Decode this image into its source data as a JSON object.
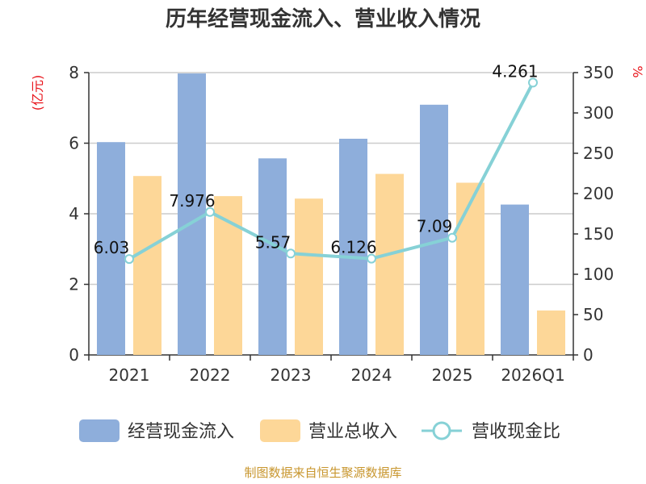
{
  "chart_data": {
    "type": "bar",
    "title": "历年经营现金流入、营业收入情况",
    "categories": [
      "2021",
      "2022",
      "2023",
      "2024",
      "2025",
      "2026Q1"
    ],
    "left_axis": {
      "unit": "(亿元)",
      "ylim": [
        0,
        8
      ],
      "ticks": [
        0,
        2,
        4,
        6,
        8
      ]
    },
    "right_axis": {
      "unit": "%",
      "ylim": [
        0,
        350
      ],
      "ticks": [
        0,
        50,
        100,
        150,
        200,
        250,
        300,
        350
      ]
    },
    "series": [
      {
        "name": "经营现金流入",
        "type": "bar",
        "axis": "left",
        "color": "#8eaedb",
        "values": [
          6.03,
          7.976,
          5.57,
          6.126,
          7.09,
          4.261
        ],
        "labels": [
          "6.03",
          "7.976",
          "5.57",
          "6.126",
          "7.09",
          "4.261"
        ]
      },
      {
        "name": "营业总收入",
        "type": "bar",
        "axis": "left",
        "color": "#fdd798",
        "values": [
          5.07,
          4.5,
          4.43,
          5.13,
          4.88,
          1.26
        ]
      },
      {
        "name": "营收现金比",
        "type": "line",
        "axis": "right",
        "color": "#86d1d6",
        "values": [
          118.9,
          177.2,
          125.7,
          119.4,
          145.3,
          337.6
        ]
      }
    ],
    "grid": true,
    "legend_position": "bottom"
  },
  "source": "制图数据来自恒生聚源数据库"
}
